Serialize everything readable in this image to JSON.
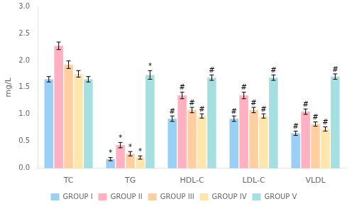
{
  "chart_data": {
    "type": "bar",
    "categories": [
      "TC",
      "TG",
      "HDL-C",
      "LDL-C",
      "VLDL"
    ],
    "series": [
      {
        "name": "GROUP I",
        "values": [
          1.65,
          0.17,
          0.92,
          0.92,
          0.65
        ],
        "errors": [
          0.05,
          0.03,
          0.05,
          0.05,
          0.04
        ],
        "annotations": [
          null,
          "*",
          "#",
          "#",
          "#"
        ]
      },
      {
        "name": "GROUP II",
        "values": [
          2.27,
          0.43,
          1.35,
          1.35,
          1.05
        ],
        "errors": [
          0.07,
          0.05,
          0.06,
          0.06,
          0.05
        ],
        "annotations": [
          null,
          "*",
          "#",
          "#",
          "#"
        ]
      },
      {
        "name": "GROUP III",
        "values": [
          1.92,
          0.27,
          1.08,
          1.08,
          0.82
        ],
        "errors": [
          0.07,
          0.04,
          0.05,
          0.05,
          0.04
        ],
        "annotations": [
          null,
          "*",
          "#",
          "#",
          "#"
        ]
      },
      {
        "name": "GROUP IV",
        "values": [
          1.75,
          0.2,
          0.97,
          0.97,
          0.73
        ],
        "errors": [
          0.06,
          0.03,
          0.04,
          0.04,
          0.04
        ],
        "annotations": [
          null,
          "*",
          "#",
          "#",
          "#"
        ]
      },
      {
        "name": "GROUP V",
        "values": [
          1.65,
          1.73,
          1.68,
          1.68,
          1.7
        ],
        "errors": [
          0.05,
          0.08,
          0.05,
          0.05,
          0.05
        ],
        "annotations": [
          null,
          "*",
          "#",
          "#",
          "#"
        ]
      }
    ],
    "ylabel": "mg/L",
    "ylim": [
      0,
      3
    ],
    "yticks": [
      {
        "value": 0,
        "label": "0.0"
      },
      0.5,
      {
        "value": 1,
        "label": "1.0"
      },
      1.5,
      {
        "value": 2,
        "label": "2.0"
      },
      2.5,
      {
        "value": 3,
        "label": "3.0"
      }
    ],
    "grid": false,
    "legend": "bottom"
  }
}
